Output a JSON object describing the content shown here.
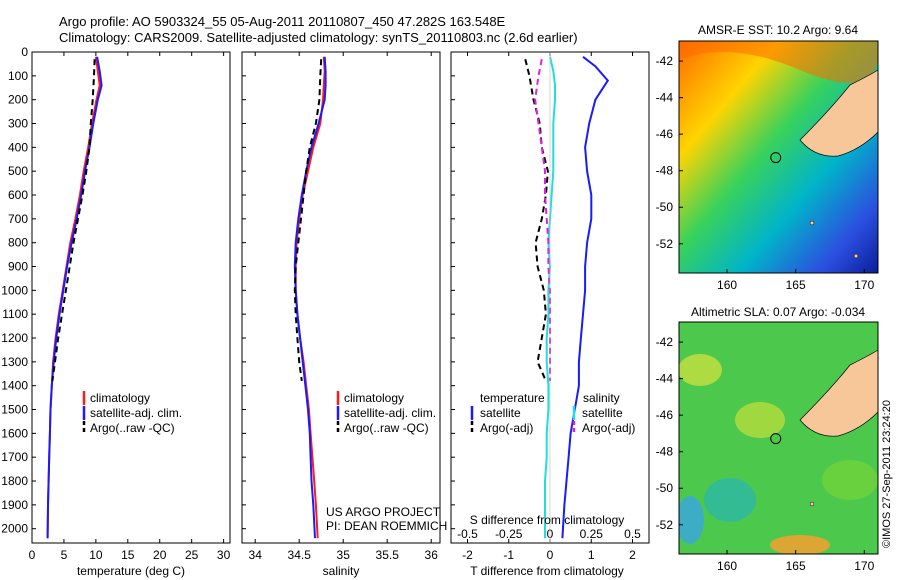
{
  "header": {
    "line1": "Argo profile: AO 5903324_55 05-Aug-2011 20110807_450 47.282S 163.548E",
    "line2": "Climatology: CARS2009. Satellite-adjusted climatology: synTS_20110803.nc (2.6d earlier)"
  },
  "colors": {
    "climatology": "#ff1a1a",
    "satellite": "#1a1aff",
    "argo": "#000000",
    "sal_satellite": "#22dddd",
    "sal_argo": "#dd22dd",
    "land": "#f7c79a"
  },
  "credit": {
    "line1": "US ARGO PROJECT",
    "line2": "PI: DEAN ROEMMICH",
    "stamp": "©IMOS 27-Sep-2011 23:24:20"
  },
  "chart_data": [
    {
      "id": "temperature",
      "type": "line",
      "xlabel": "temperature (deg C)",
      "xlim": [
        0,
        31
      ],
      "xticks": [
        "0",
        "5",
        "10",
        "15",
        "20",
        "25",
        "30"
      ],
      "ylim": [
        2060,
        0
      ],
      "yticks": [
        "0",
        "100",
        "200",
        "300",
        "400",
        "500",
        "600",
        "700",
        "800",
        "900",
        "1000",
        "1100",
        "1200",
        "1300",
        "1400",
        "1500",
        "1600",
        "1700",
        "1800",
        "1900",
        "2000"
      ],
      "legend": [
        "climatology",
        "satellite-adj. clim.",
        "Argo(..raw -QC)"
      ],
      "series": [
        {
          "name": "climatology",
          "x": [
            10.0,
            10.3,
            10.6,
            10.1,
            9.4,
            8.8,
            8.1,
            7.5,
            6.8,
            6.0,
            5.4,
            4.8,
            4.2,
            3.7,
            3.3,
            3.1,
            2.9,
            2.8,
            2.7,
            2.6,
            2.5,
            2.45
          ],
          "y": [
            20,
            80,
            140,
            200,
            300,
            400,
            500,
            600,
            700,
            800,
            900,
            1000,
            1100,
            1200,
            1300,
            1400,
            1500,
            1600,
            1700,
            1800,
            1900,
            2040
          ]
        },
        {
          "name": "satellite-adj. clim.",
          "x": [
            10.2,
            10.6,
            10.9,
            10.3,
            9.6,
            9.0,
            8.3,
            7.7,
            7.0,
            6.2,
            5.5,
            4.9,
            4.3,
            3.8,
            3.4,
            3.1,
            2.9,
            2.8,
            2.7,
            2.6,
            2.5,
            2.45
          ],
          "y": [
            20,
            80,
            140,
            200,
            300,
            400,
            500,
            600,
            700,
            800,
            900,
            1000,
            1100,
            1200,
            1300,
            1400,
            1500,
            1600,
            1700,
            1800,
            1900,
            2040
          ]
        },
        {
          "name": "Argo(..raw -QC)",
          "x": [
            9.8,
            9.7,
            9.5,
            9.2,
            9.0,
            8.5,
            7.9,
            7.2,
            6.5,
            5.9,
            5.3,
            4.7,
            4.1,
            3.6,
            3.2
          ],
          "y": [
            30,
            100,
            200,
            300,
            400,
            500,
            600,
            700,
            800,
            900,
            1000,
            1100,
            1200,
            1300,
            1380
          ]
        }
      ]
    },
    {
      "id": "salinity",
      "type": "line",
      "xlabel": "salinity",
      "xlim": [
        33.85,
        36.1
      ],
      "xticks": [
        "34",
        "34.5",
        "35",
        "35.5",
        "36"
      ],
      "ylim": [
        2060,
        0
      ],
      "legend": [
        "climatology",
        "satellite-adj. clim.",
        "Argo(..raw -QC)"
      ],
      "series": [
        {
          "name": "climatology",
          "x": [
            34.78,
            34.79,
            34.78,
            34.77,
            34.74,
            34.66,
            34.6,
            34.54,
            34.5,
            34.47,
            34.46,
            34.46,
            34.48,
            34.51,
            34.55,
            34.58,
            34.61,
            34.63,
            34.65,
            34.67,
            34.69,
            34.71
          ],
          "y": [
            20,
            80,
            140,
            200,
            300,
            400,
            500,
            600,
            700,
            800,
            900,
            1000,
            1100,
            1200,
            1300,
            1400,
            1500,
            1600,
            1700,
            1800,
            1900,
            2040
          ]
        },
        {
          "name": "satellite-adj. clim.",
          "x": [
            34.79,
            34.8,
            34.8,
            34.79,
            34.72,
            34.64,
            34.58,
            34.53,
            34.49,
            34.46,
            34.45,
            34.46,
            34.48,
            34.51,
            34.54,
            34.57,
            34.6,
            34.62,
            34.63,
            34.64,
            34.66,
            34.68
          ],
          "y": [
            20,
            80,
            140,
            200,
            300,
            400,
            500,
            600,
            700,
            800,
            900,
            1000,
            1100,
            1200,
            1300,
            1400,
            1500,
            1600,
            1700,
            1800,
            1900,
            2040
          ]
        },
        {
          "name": "Argo(..raw -QC)",
          "x": [
            34.75,
            34.74,
            34.73,
            34.69,
            34.62,
            34.58,
            34.55,
            34.52,
            34.49,
            34.46,
            34.45,
            34.46,
            34.48,
            34.5,
            34.53
          ],
          "y": [
            30,
            100,
            200,
            300,
            400,
            500,
            600,
            700,
            800,
            900,
            1000,
            1100,
            1200,
            1300,
            1380
          ]
        }
      ]
    },
    {
      "id": "difference",
      "type": "line",
      "xlabel": "T difference from climatology",
      "toplabel": "S difference from climatology",
      "xlim": [
        -2.4,
        2.4
      ],
      "xticks": [
        "-2",
        "-1",
        "0",
        "1",
        "2"
      ],
      "sticks": [
        "-0.5",
        "-0.25",
        "0",
        "0.25",
        "0.5"
      ],
      "ylim": [
        2060,
        0
      ],
      "legend": {
        "temperature_title": "temperature",
        "salinity_title": "salinity",
        "items": [
          "satellite",
          "Argo(-adj)",
          "satellite",
          "Argo(-adj)"
        ]
      },
      "series": [
        {
          "name": "T satellite",
          "x": [
            0.8,
            1.1,
            1.4,
            1.1,
            0.95,
            0.85,
            0.9,
            1.0,
            1.0,
            0.9,
            0.85,
            0.85,
            0.8,
            0.75,
            0.7,
            0.7,
            0.6,
            0.5,
            0.45,
            0.4,
            0.35,
            0.3
          ],
          "y": [
            20,
            60,
            120,
            200,
            300,
            400,
            500,
            600,
            700,
            800,
            900,
            1000,
            1100,
            1200,
            1300,
            1400,
            1500,
            1600,
            1700,
            1800,
            1900,
            2040
          ]
        },
        {
          "name": "T Argo(-adj)",
          "x": [
            -0.6,
            -0.5,
            -0.4,
            -0.25,
            -0.2,
            -0.05,
            -0.1,
            -0.2,
            -0.35,
            -0.3,
            -0.15,
            -0.1,
            -0.2,
            -0.3,
            -0.1
          ],
          "y": [
            30,
            100,
            200,
            300,
            400,
            500,
            600,
            700,
            800,
            900,
            1000,
            1100,
            1200,
            1300,
            1380
          ]
        },
        {
          "name": "S satellite",
          "x": [
            0.0,
            0.02,
            0.03,
            0.03,
            0.02,
            0.02,
            0.02,
            0.01,
            0.0,
            -0.01,
            0.0,
            -0.01,
            -0.01,
            -0.02,
            -0.02,
            -0.01,
            -0.01,
            -0.02,
            -0.02,
            -0.03,
            -0.03
          ],
          "y": [
            20,
            80,
            140,
            200,
            300,
            400,
            500,
            600,
            700,
            800,
            900,
            1000,
            1100,
            1200,
            1300,
            1400,
            1500,
            1600,
            1700,
            1800,
            2040
          ]
        },
        {
          "name": "S Argo(-adj)",
          "x": [
            -0.05,
            -0.07,
            -0.09,
            -0.07,
            -0.05,
            -0.03,
            -0.03,
            -0.02,
            -0.01,
            -0.01,
            0.0,
            0.0,
            0.0,
            0.0,
            0.0
          ],
          "y": [
            30,
            100,
            200,
            300,
            400,
            500,
            600,
            700,
            800,
            900,
            1000,
            1100,
            1200,
            1300,
            1380
          ]
        }
      ]
    },
    {
      "id": "sst_map",
      "type": "heatmap",
      "title": "AMSR-E SST: 10.2 Argo: 9.64",
      "lon_ticks": [
        "160",
        "165",
        "170"
      ],
      "lat_ticks": [
        "-42",
        "-44",
        "-46",
        "-48",
        "-50",
        "-52"
      ],
      "lon_range": [
        156.5,
        171
      ],
      "lat_range": [
        -53.6,
        -40.9
      ],
      "argo_position": {
        "lon": 163.548,
        "lat": -47.282
      }
    },
    {
      "id": "sla_map",
      "type": "heatmap",
      "title": "Altimetric SLA: 0.07 Argo: -0.034",
      "lon_ticks": [
        "160",
        "165",
        "170"
      ],
      "lat_ticks": [
        "-42",
        "-44",
        "-46",
        "-48",
        "-50",
        "-52"
      ],
      "lon_range": [
        156.5,
        171
      ],
      "lat_range": [
        -53.6,
        -40.9
      ],
      "argo_position": {
        "lon": 163.548,
        "lat": -47.282
      }
    }
  ]
}
